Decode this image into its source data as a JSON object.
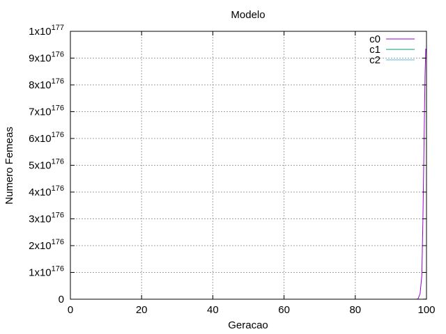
{
  "chart_data": {
    "type": "line",
    "title": "Modelo",
    "xlabel": "Geracao",
    "ylabel": "Numero Femeas",
    "xlim": [
      0,
      100
    ],
    "ylim": [
      0,
      1e+177
    ],
    "grid": true,
    "legend_position": "top-right",
    "x_ticks": [
      {
        "value": 0,
        "label": "0"
      },
      {
        "value": 20,
        "label": "20"
      },
      {
        "value": 40,
        "label": "40"
      },
      {
        "value": 60,
        "label": "60"
      },
      {
        "value": 80,
        "label": "80"
      },
      {
        "value": 100,
        "label": "100"
      }
    ],
    "y_ticks": [
      {
        "value": 0,
        "label": "0",
        "exp": ""
      },
      {
        "value": 1e+176,
        "label": "1x10",
        "exp": "176"
      },
      {
        "value": 2e+176,
        "label": "2x10",
        "exp": "176"
      },
      {
        "value": 3e+176,
        "label": "3x10",
        "exp": "176"
      },
      {
        "value": 4e+176,
        "label": "4x10",
        "exp": "176"
      },
      {
        "value": 5e+176,
        "label": "5x10",
        "exp": "176"
      },
      {
        "value": 6e+176,
        "label": "6x10",
        "exp": "176"
      },
      {
        "value": 7e+176,
        "label": "7x10",
        "exp": "176"
      },
      {
        "value": 8e+176,
        "label": "8x10",
        "exp": "176"
      },
      {
        "value": 9e+176,
        "label": "9x10",
        "exp": "176"
      },
      {
        "value": 1e+177,
        "label": "1x10",
        "exp": "177"
      }
    ],
    "series": [
      {
        "name": "c0",
        "color": "#9400d3",
        "points": [
          [
            0,
            0
          ],
          [
            97,
            0
          ],
          [
            97.6,
            1e+174
          ],
          [
            98.2,
            2e+175
          ],
          [
            98.7,
            9e+175
          ],
          [
            99.0,
            3e+176
          ],
          [
            99.2,
            4.8e+176
          ],
          [
            99.4,
            6.6e+176
          ],
          [
            99.6,
            8.4e+176
          ],
          [
            99.8,
            9.35e+176
          ]
        ]
      },
      {
        "name": "c1",
        "color": "#009e73",
        "points": [
          [
            0,
            0
          ],
          [
            98,
            0
          ],
          [
            99,
            2e+173
          ],
          [
            100,
            1e+174
          ]
        ]
      },
      {
        "name": "c2",
        "color": "#56b4e9",
        "points": [
          [
            0,
            0
          ],
          [
            98,
            0
          ],
          [
            99,
            1e+173
          ],
          [
            100,
            6e+173
          ]
        ]
      }
    ]
  }
}
